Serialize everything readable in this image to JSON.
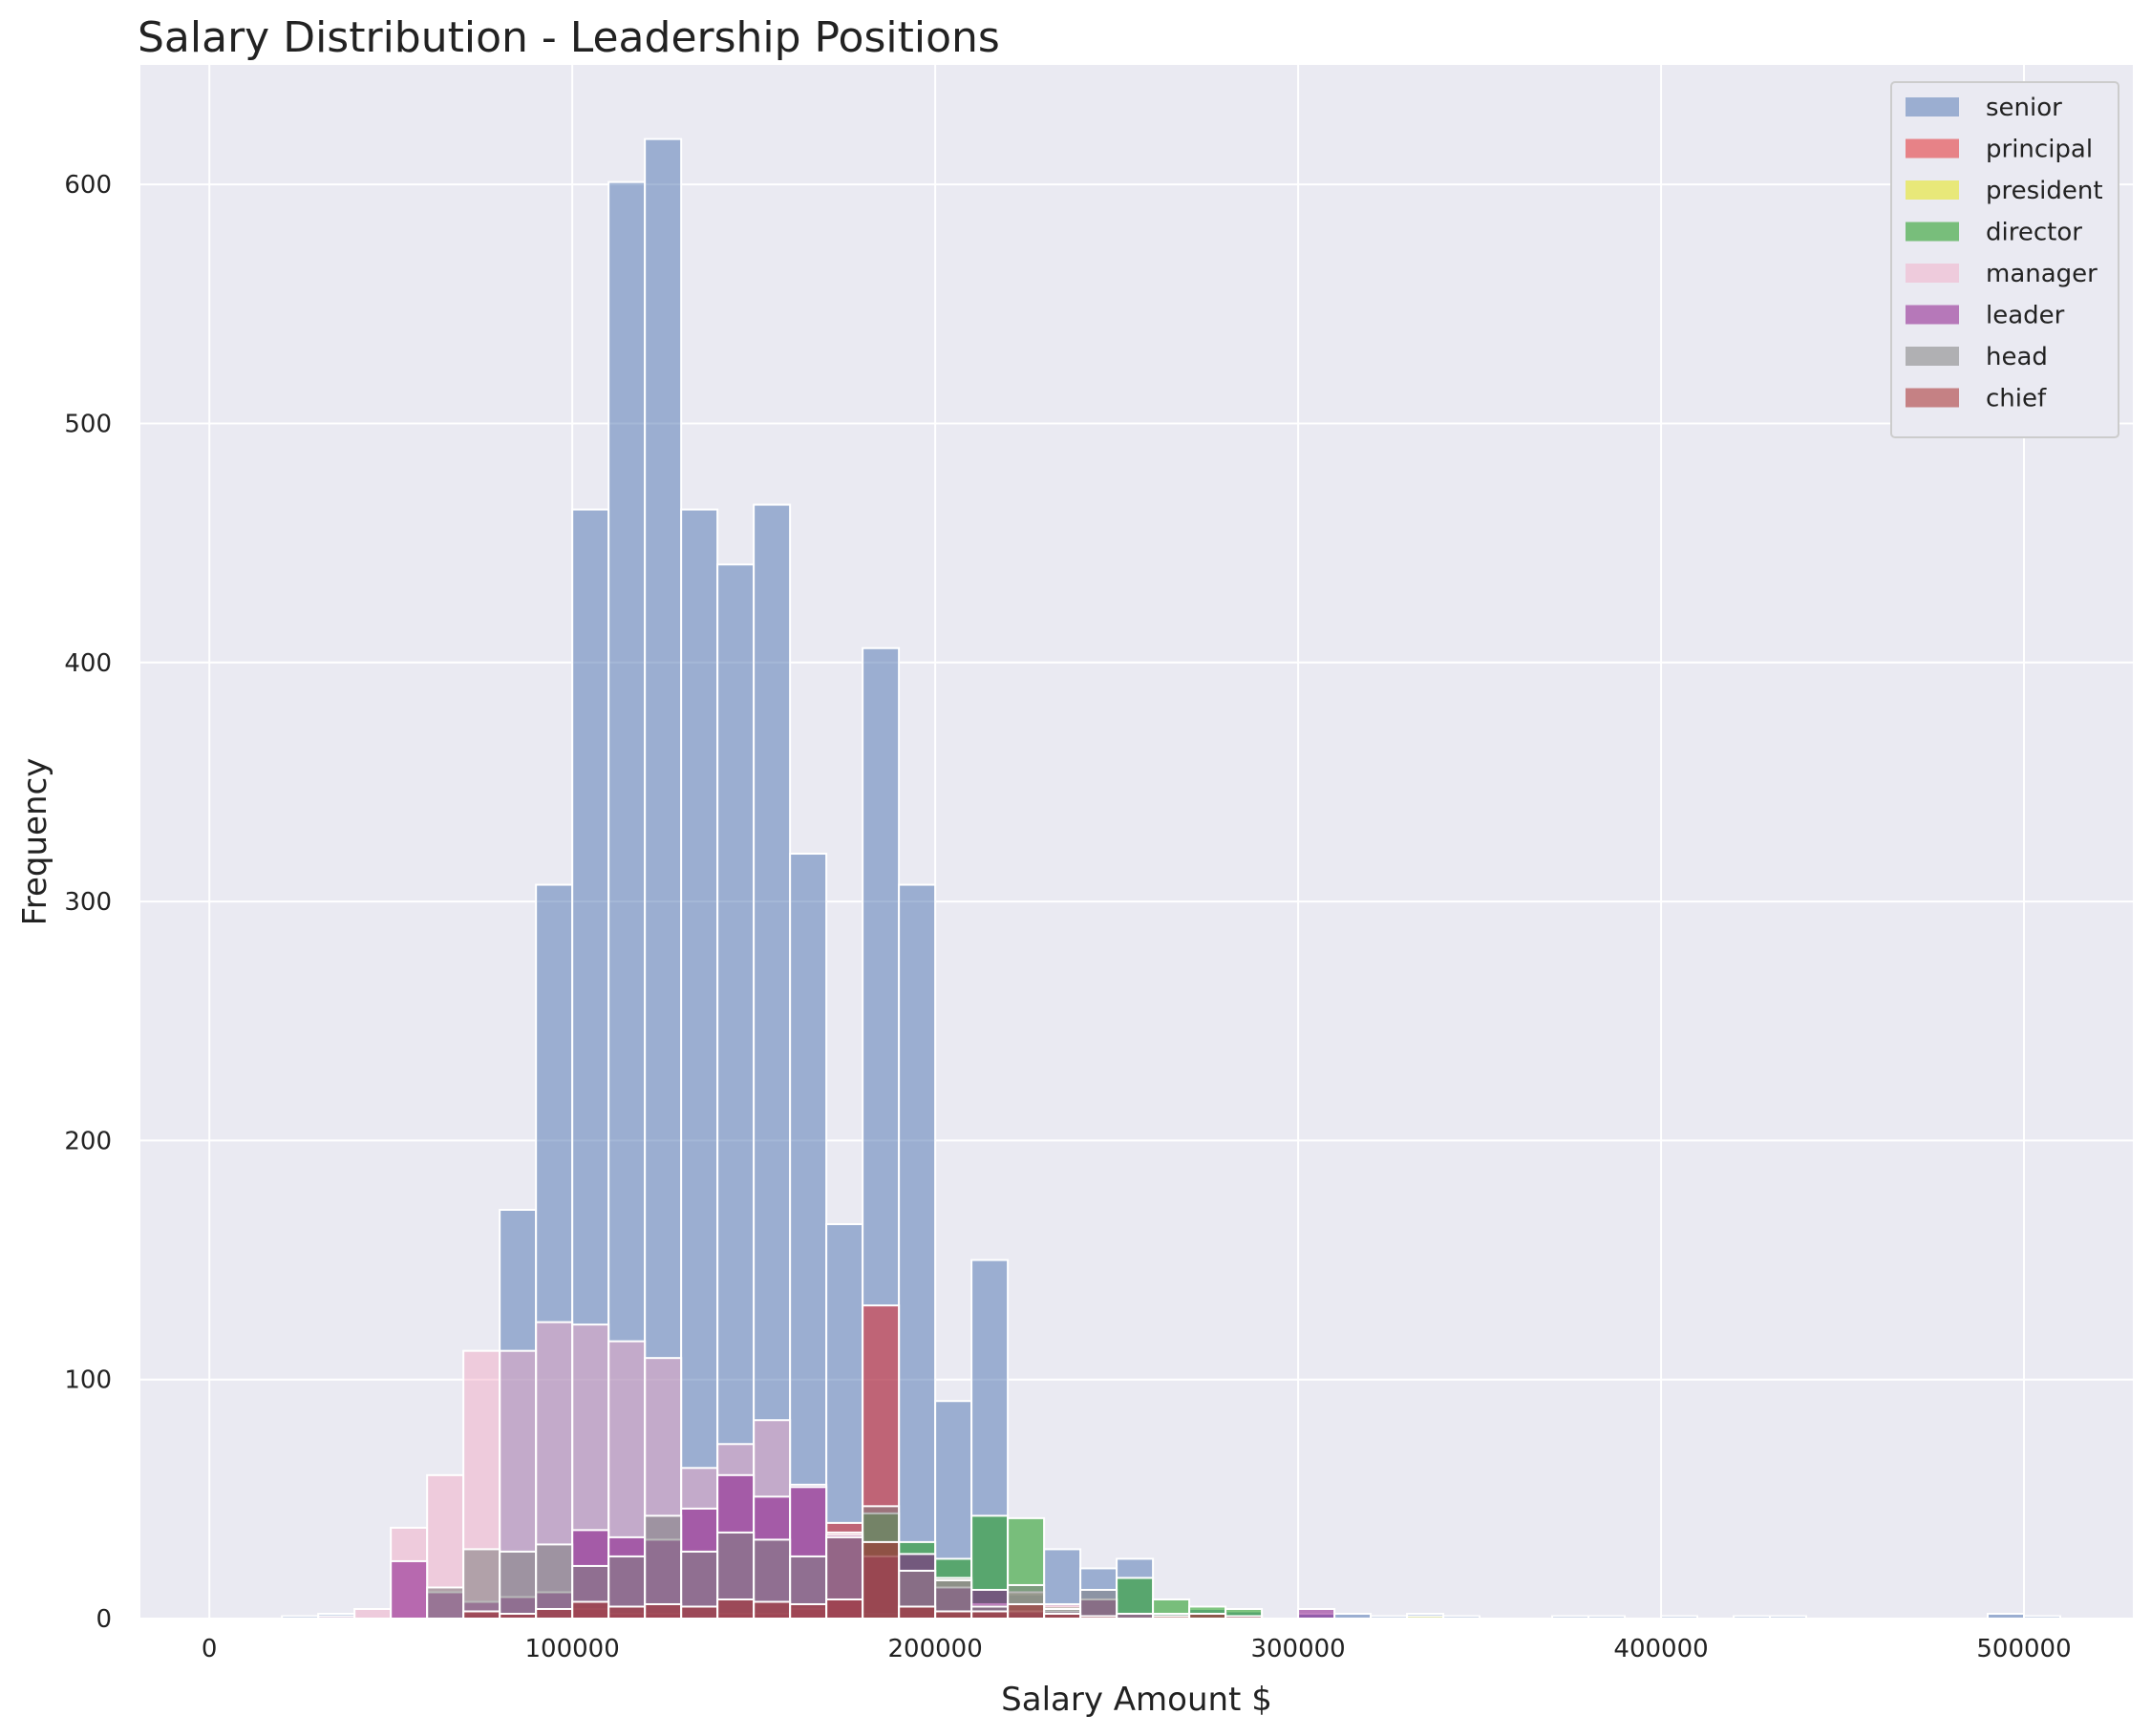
{
  "chart_data": {
    "type": "bar",
    "title": "Salary Distribution - Leadership Positions",
    "xlabel": "Salary Amount $",
    "ylabel": "Frequency",
    "xlim": [
      -19000,
      530000
    ],
    "ylim": [
      0,
      650
    ],
    "xticks": [
      0,
      100000,
      200000,
      300000,
      400000,
      500000
    ],
    "yticks": [
      0,
      100,
      200,
      300,
      400,
      500,
      600
    ],
    "bin_width": 10000,
    "grid": true,
    "legend_position": "top-right",
    "plot_background": "#eaeaf2",
    "series": [
      {
        "name": "senior",
        "color": "#4c72b0",
        "opacity": 0.5,
        "bins": [
          [
            20000,
            1
          ],
          [
            30000,
            2
          ],
          [
            70000,
            2
          ],
          [
            80000,
            171
          ],
          [
            90000,
            307
          ],
          [
            100000,
            464
          ],
          [
            110000,
            601
          ],
          [
            120000,
            619
          ],
          [
            130000,
            464
          ],
          [
            140000,
            441
          ],
          [
            150000,
            466
          ],
          [
            160000,
            320
          ],
          [
            170000,
            165
          ],
          [
            180000,
            406
          ],
          [
            190000,
            307
          ],
          [
            200000,
            91
          ],
          [
            210000,
            150
          ],
          [
            220000,
            10
          ],
          [
            230000,
            29
          ],
          [
            240000,
            21
          ],
          [
            250000,
            25
          ],
          [
            260000,
            2
          ],
          [
            270000,
            4
          ],
          [
            280000,
            3
          ],
          [
            300000,
            2
          ],
          [
            310000,
            2
          ],
          [
            320000,
            1
          ],
          [
            330000,
            2
          ],
          [
            340000,
            1
          ],
          [
            370000,
            1
          ],
          [
            380000,
            1
          ],
          [
            400000,
            1
          ],
          [
            420000,
            1
          ],
          [
            430000,
            1
          ],
          [
            490000,
            2
          ],
          [
            500000,
            1
          ]
        ]
      },
      {
        "name": "principal",
        "color": "#e41a1c",
        "opacity": 0.5,
        "bins": [
          [
            100000,
            4
          ],
          [
            110000,
            2
          ],
          [
            120000,
            2
          ],
          [
            140000,
            2
          ],
          [
            150000,
            2
          ],
          [
            160000,
            4
          ],
          [
            170000,
            40
          ],
          [
            180000,
            131
          ],
          [
            190000,
            5
          ],
          [
            200000,
            3
          ],
          [
            210000,
            2
          ],
          [
            220000,
            2
          ],
          [
            230000,
            1
          ],
          [
            240000,
            1
          ],
          [
            250000,
            1
          ],
          [
            260000,
            1
          ],
          [
            280000,
            1
          ]
        ]
      },
      {
        "name": "president",
        "color": "#e6e600",
        "opacity": 0.5,
        "bins": [
          [
            180000,
            2
          ],
          [
            200000,
            2
          ],
          [
            330000,
            1
          ]
        ]
      },
      {
        "name": "director",
        "color": "#2ca02c",
        "opacity": 0.6,
        "bins": [
          [
            180000,
            44
          ],
          [
            190000,
            32
          ],
          [
            200000,
            25
          ],
          [
            210000,
            43
          ],
          [
            220000,
            42
          ],
          [
            230000,
            5
          ],
          [
            240000,
            8
          ],
          [
            250000,
            17
          ],
          [
            260000,
            8
          ],
          [
            270000,
            5
          ],
          [
            280000,
            4
          ]
        ]
      },
      {
        "name": "manager",
        "color": "#f4a6c0",
        "opacity": 0.45,
        "bins": [
          [
            30000,
            1
          ],
          [
            40000,
            4
          ],
          [
            50000,
            38
          ],
          [
            60000,
            60
          ],
          [
            70000,
            112
          ],
          [
            80000,
            112
          ],
          [
            90000,
            124
          ],
          [
            100000,
            123
          ],
          [
            110000,
            116
          ],
          [
            120000,
            109
          ],
          [
            130000,
            63
          ],
          [
            140000,
            73
          ],
          [
            150000,
            83
          ],
          [
            160000,
            56
          ],
          [
            170000,
            36
          ],
          [
            180000,
            26
          ],
          [
            190000,
            20
          ],
          [
            200000,
            17
          ],
          [
            210000,
            6
          ],
          [
            220000,
            11
          ],
          [
            230000,
            6
          ],
          [
            240000,
            8
          ],
          [
            250000,
            2
          ],
          [
            260000,
            1
          ]
        ]
      },
      {
        "name": "leader",
        "color": "#8b1a8b",
        "opacity": 0.55,
        "bins": [
          [
            50000,
            24
          ],
          [
            60000,
            11
          ],
          [
            70000,
            7
          ],
          [
            80000,
            9
          ],
          [
            90000,
            11
          ],
          [
            100000,
            37
          ],
          [
            110000,
            34
          ],
          [
            120000,
            33
          ],
          [
            130000,
            46
          ],
          [
            140000,
            60
          ],
          [
            150000,
            51
          ],
          [
            160000,
            55
          ],
          [
            170000,
            35
          ],
          [
            180000,
            26
          ],
          [
            190000,
            27
          ],
          [
            200000,
            13
          ],
          [
            210000,
            12
          ],
          [
            220000,
            3
          ],
          [
            230000,
            3
          ],
          [
            240000,
            8
          ],
          [
            250000,
            2
          ],
          [
            280000,
            1
          ],
          [
            300000,
            4
          ]
        ]
      },
      {
        "name": "head",
        "color": "#7f7f7f",
        "opacity": 0.55,
        "bins": [
          [
            60000,
            13
          ],
          [
            70000,
            29
          ],
          [
            80000,
            28
          ],
          [
            90000,
            31
          ],
          [
            100000,
            22
          ],
          [
            110000,
            26
          ],
          [
            120000,
            43
          ],
          [
            130000,
            28
          ],
          [
            140000,
            36
          ],
          [
            150000,
            33
          ],
          [
            160000,
            26
          ],
          [
            170000,
            34
          ],
          [
            180000,
            47
          ],
          [
            190000,
            20
          ],
          [
            200000,
            16
          ],
          [
            210000,
            5
          ],
          [
            220000,
            14
          ],
          [
            230000,
            4
          ],
          [
            240000,
            12
          ],
          [
            250000,
            2
          ],
          [
            260000,
            2
          ],
          [
            270000,
            2
          ]
        ]
      },
      {
        "name": "chief",
        "color": "#a52a2a",
        "opacity": 0.55,
        "bins": [
          [
            70000,
            3
          ],
          [
            80000,
            2
          ],
          [
            90000,
            4
          ],
          [
            100000,
            7
          ],
          [
            110000,
            5
          ],
          [
            120000,
            6
          ],
          [
            130000,
            5
          ],
          [
            140000,
            8
          ],
          [
            150000,
            7
          ],
          [
            160000,
            6
          ],
          [
            170000,
            8
          ],
          [
            180000,
            32
          ],
          [
            190000,
            5
          ],
          [
            200000,
            3
          ],
          [
            210000,
            3
          ],
          [
            220000,
            6
          ],
          [
            230000,
            2
          ],
          [
            240000,
            1
          ],
          [
            260000,
            1
          ],
          [
            270000,
            2
          ],
          [
            280000,
            1
          ]
        ]
      }
    ]
  }
}
